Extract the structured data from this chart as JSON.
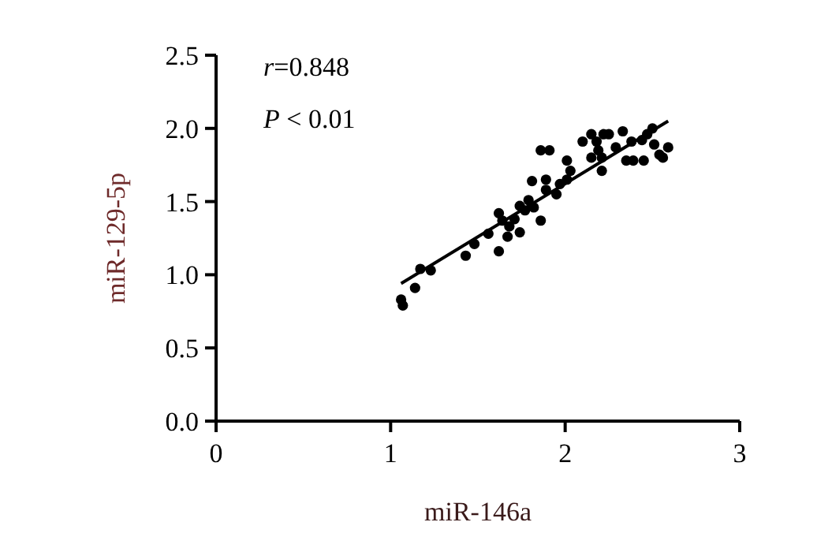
{
  "chart_data": {
    "type": "scatter",
    "xlabel": "miR-146a",
    "ylabel": "miR-129-5p",
    "xlim": [
      0,
      3
    ],
    "ylim": [
      0,
      2.5
    ],
    "xticks": [
      0,
      1,
      2,
      3
    ],
    "yticks": [
      {
        "value": 0,
        "label": "0.0"
      },
      {
        "value": 0.5,
        "label": "0.5"
      },
      {
        "value": 1,
        "label": "1.0"
      },
      {
        "value": 1.5,
        "label": "1.5"
      },
      {
        "value": 2,
        "label": "2.0"
      },
      {
        "value": 2.5,
        "label": "2.5"
      }
    ],
    "grid": false,
    "annotations": [
      "r=0.848",
      "P < 0.01"
    ],
    "series": [
      {
        "color": "#000000",
        "marker": "circle",
        "x": [
          1.06,
          1.07,
          1.14,
          1.17,
          1.23,
          1.43,
          1.48,
          1.56,
          1.62,
          1.62,
          1.64,
          1.67,
          1.68,
          1.74,
          1.71,
          1.74,
          1.77,
          1.79,
          1.82,
          1.81,
          1.86,
          1.86,
          1.91,
          1.89,
          1.89,
          1.95,
          1.97,
          2.01,
          2.03,
          2.01,
          2.1,
          2.15,
          2.18,
          2.15,
          2.21,
          2.22,
          2.25,
          2.21,
          2.19,
          2.33,
          2.35,
          2.38,
          2.39,
          2.44,
          2.45,
          2.47,
          2.5,
          2.51,
          2.54,
          2.59,
          2.56,
          2.29
        ],
        "values": [
          0.83,
          0.79,
          0.91,
          1.04,
          1.03,
          1.13,
          1.21,
          1.28,
          1.16,
          1.42,
          1.37,
          1.26,
          1.33,
          1.29,
          1.38,
          1.47,
          1.44,
          1.51,
          1.46,
          1.64,
          1.37,
          1.85,
          1.85,
          1.65,
          1.58,
          1.55,
          1.62,
          1.78,
          1.71,
          1.65,
          1.91,
          1.96,
          1.91,
          1.8,
          1.8,
          1.96,
          1.96,
          1.71,
          1.85,
          1.98,
          1.78,
          1.91,
          1.78,
          1.92,
          1.78,
          1.96,
          2.0,
          1.89,
          1.82,
          1.87,
          1.8,
          1.87
        ]
      },
      {
        "type": "line",
        "color": "#000000",
        "x": [
          1.06,
          2.59
        ],
        "values": [
          0.94,
          2.05
        ]
      }
    ]
  }
}
